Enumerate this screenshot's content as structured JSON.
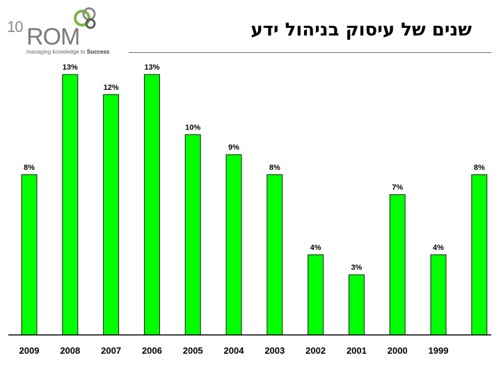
{
  "header": {
    "logo_number": "10",
    "logo_name": "ROM",
    "logo_tagline_prefix": "managing knowledge to",
    "logo_tagline_bold": "Success",
    "title": "שנים של עיסוק בניהול ידע"
  },
  "colors": {
    "bar": "#00ff00",
    "bar_border": "#1a1a1a",
    "axis": "#000000"
  },
  "chart_data": {
    "type": "bar",
    "title": "שנים של עיסוק בניהול ידע",
    "categories": [
      "2009",
      "2008",
      "2007",
      "2006",
      "2005",
      "2004",
      "2003",
      "2002",
      "2001",
      "2000",
      "1999",
      ""
    ],
    "values": [
      8,
      13,
      12,
      13,
      10,
      9,
      8,
      4,
      3,
      7,
      4,
      8
    ],
    "data_labels": [
      "8%",
      "13%",
      "12%",
      "13%",
      "10%",
      "9%",
      "8%",
      "4%",
      "3%",
      "7%",
      "4%",
      "8%"
    ],
    "xlabel": "",
    "ylabel": "",
    "ylim": [
      0,
      13
    ],
    "grid": false,
    "legend": "none"
  }
}
